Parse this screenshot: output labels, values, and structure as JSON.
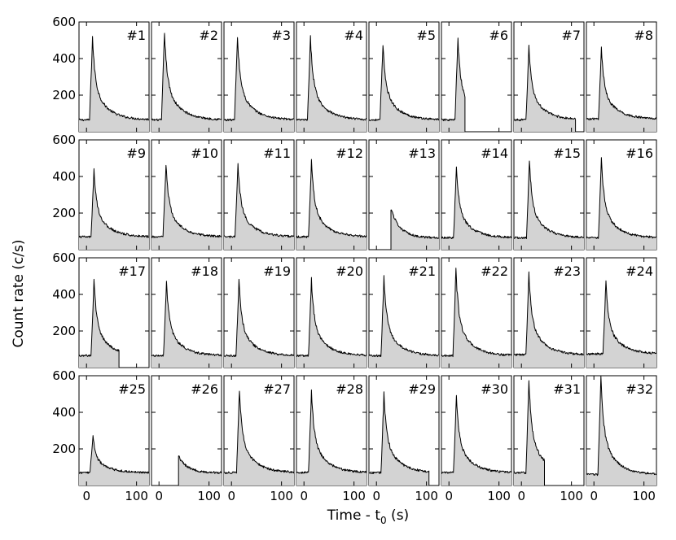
{
  "chart_data": {
    "type": "area",
    "layout": "4 rows x 8 columns grid of panels with shared axes",
    "xlabel": "Time - t",
    "xlabel_subscript": "0",
    "xlabel_unit": " (s)",
    "ylabel": "Count rate (c/s)",
    "xlim": [
      -15,
      125
    ],
    "ylim": [
      0,
      600
    ],
    "x_ticks": [
      0,
      100
    ],
    "x_tick_labels": [
      "0",
      "100"
    ],
    "y_ticks": [
      200,
      400,
      600
    ],
    "y_tick_labels": [
      "200",
      "400",
      "600"
    ],
    "fill_color": "#d3d3d3",
    "line_color": "#000000",
    "series": [
      {
        "label": "#1",
        "start": 5,
        "end": 125,
        "peak_t": 12,
        "peak": 515,
        "tail": 65
      },
      {
        "label": "#2",
        "start": 5,
        "end": 125,
        "peak_t": 11,
        "peak": 540,
        "tail": 65
      },
      {
        "label": "#3",
        "start": 5,
        "end": 125,
        "peak_t": 12,
        "peak": 515,
        "tail": 65
      },
      {
        "label": "#4",
        "start": 5,
        "end": 125,
        "peak_t": 13,
        "peak": 510,
        "tail": 65
      },
      {
        "label": "#5",
        "start": 5,
        "end": 125,
        "peak_t": 13,
        "peak": 470,
        "tail": 65
      },
      {
        "label": "#6",
        "start": 5,
        "end": 32,
        "peak_t": 18,
        "peak": 500,
        "tail": 65
      },
      {
        "label": "#7",
        "start": 5,
        "end": 108,
        "peak_t": 15,
        "peak": 460,
        "tail": 65
      },
      {
        "label": "#8",
        "start": 5,
        "end": 125,
        "peak_t": 15,
        "peak": 450,
        "tail": 70
      },
      {
        "label": "#9",
        "start": 5,
        "end": 125,
        "peak_t": 15,
        "peak": 430,
        "tail": 70
      },
      {
        "label": "#10",
        "start": 5,
        "end": 125,
        "peak_t": 14,
        "peak": 465,
        "tail": 70
      },
      {
        "label": "#11",
        "start": 5,
        "end": 125,
        "peak_t": 13,
        "peak": 460,
        "tail": 70
      },
      {
        "label": "#12",
        "start": 5,
        "end": 125,
        "peak_t": 15,
        "peak": 480,
        "tail": 70
      },
      {
        "label": "#13",
        "start": 29,
        "end": 125,
        "peak_t": 29,
        "peak": 225,
        "tail": 65
      },
      {
        "label": "#14",
        "start": 5,
        "end": 125,
        "peak_t": 15,
        "peak": 440,
        "tail": 65
      },
      {
        "label": "#15",
        "start": 5,
        "end": 125,
        "peak_t": 16,
        "peak": 475,
        "tail": 65
      },
      {
        "label": "#16",
        "start": 5,
        "end": 125,
        "peak_t": 15,
        "peak": 490,
        "tail": 65
      },
      {
        "label": "#17",
        "start": 5,
        "end": 65,
        "peak_t": 15,
        "peak": 470,
        "tail": 65
      },
      {
        "label": "#18",
        "start": 5,
        "end": 125,
        "peak_t": 15,
        "peak": 460,
        "tail": 65
      },
      {
        "label": "#19",
        "start": 5,
        "end": 125,
        "peak_t": 15,
        "peak": 470,
        "tail": 65
      },
      {
        "label": "#20",
        "start": 5,
        "end": 125,
        "peak_t": 15,
        "peak": 480,
        "tail": 65
      },
      {
        "label": "#21",
        "start": 5,
        "end": 125,
        "peak_t": 15,
        "peak": 490,
        "tail": 65
      },
      {
        "label": "#22",
        "start": 5,
        "end": 125,
        "peak_t": 14,
        "peak": 530,
        "tail": 65
      },
      {
        "label": "#23",
        "start": 5,
        "end": 125,
        "peak_t": 15,
        "peak": 510,
        "tail": 70
      },
      {
        "label": "#24",
        "start": 5,
        "end": 125,
        "peak_t": 24,
        "peak": 460,
        "tail": 75
      },
      {
        "label": "#25",
        "start": 5,
        "end": 125,
        "peak_t": 13,
        "peak": 270,
        "tail": 70
      },
      {
        "label": "#26",
        "start": 39,
        "end": 125,
        "peak_t": 39,
        "peak": 160,
        "tail": 70
      },
      {
        "label": "#27",
        "start": 5,
        "end": 125,
        "peak_t": 16,
        "peak": 520,
        "tail": 70
      },
      {
        "label": "#28",
        "start": 5,
        "end": 125,
        "peak_t": 15,
        "peak": 510,
        "tail": 70
      },
      {
        "label": "#29",
        "start": 5,
        "end": 105,
        "peak_t": 15,
        "peak": 500,
        "tail": 70
      },
      {
        "label": "#30",
        "start": 5,
        "end": 125,
        "peak_t": 15,
        "peak": 480,
        "tail": 70
      },
      {
        "label": "#31",
        "start": 5,
        "end": 46,
        "peak_t": 15,
        "peak": 560,
        "tail": 70
      },
      {
        "label": "#32",
        "start": 5,
        "end": 125,
        "peak_t": 14,
        "peak": 590,
        "tail": 60
      }
    ]
  }
}
